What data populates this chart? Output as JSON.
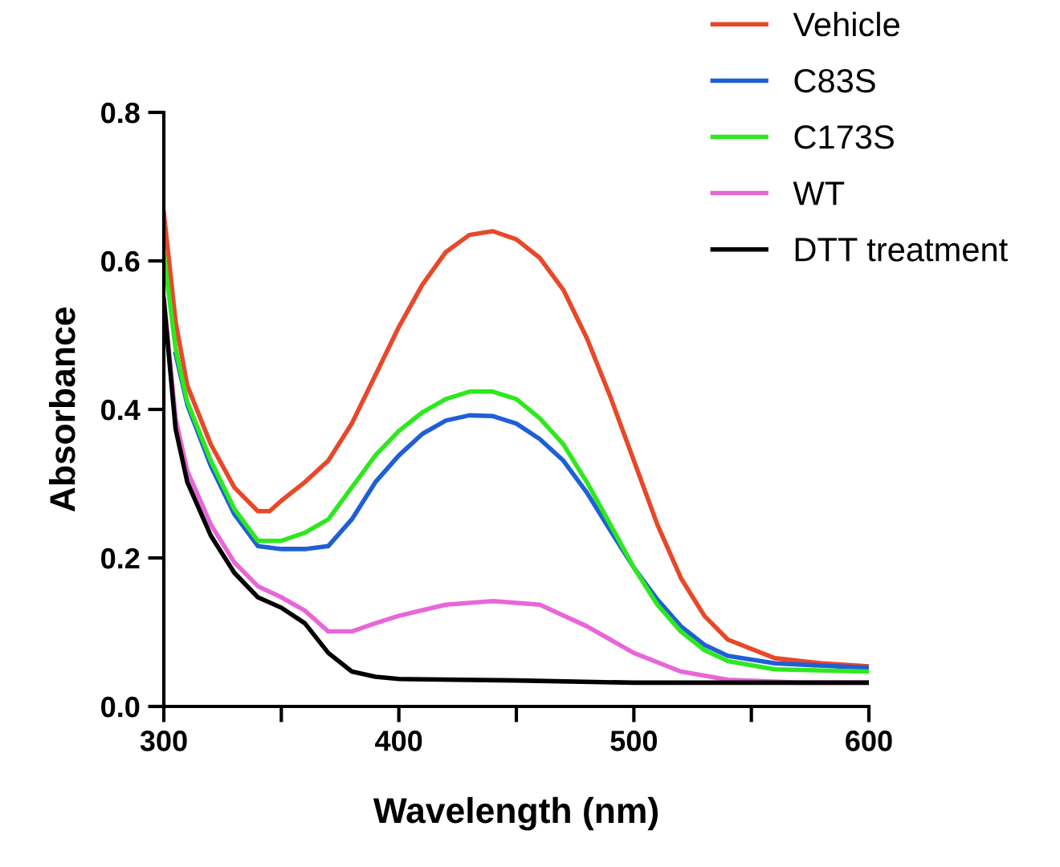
{
  "chart_data": {
    "type": "line",
    "xlabel": "Wavelength (nm)",
    "ylabel": "Absorbance",
    "xlim": [
      300,
      600
    ],
    "ylim": [
      0,
      0.8
    ],
    "xticks": [
      300,
      {
        "value": 350,
        "label": null
      },
      400,
      {
        "value": 450,
        "label": null
      },
      500,
      {
        "value": 550,
        "label": null
      },
      600
    ],
    "yticks": [
      {
        "value": 0,
        "label": "0.0"
      },
      0.2,
      0.4,
      0.6,
      0.8
    ],
    "grid": false,
    "legend": "top right",
    "marker": "none",
    "line_style": "solid",
    "series": [
      {
        "name": "Vehicle",
        "color": "#e8482a",
        "x": [
          300,
          305,
          310,
          320,
          330,
          340,
          345,
          350,
          360,
          370,
          380,
          390,
          400,
          410,
          420,
          430,
          440,
          450,
          460,
          470,
          480,
          490,
          500,
          510,
          520,
          530,
          540,
          560,
          580,
          600
        ],
        "values": [
          0.665,
          0.518,
          0.432,
          0.353,
          0.295,
          0.263,
          0.263,
          0.277,
          0.302,
          0.331,
          0.381,
          0.446,
          0.511,
          0.568,
          0.612,
          0.635,
          0.64,
          0.629,
          0.604,
          0.561,
          0.496,
          0.417,
          0.331,
          0.245,
          0.173,
          0.122,
          0.09,
          0.065,
          0.058,
          0.054
        ]
      },
      {
        "name": "C83S",
        "color": "#1f5fd6",
        "x": [
          305,
          310,
          320,
          330,
          340,
          350,
          360,
          370,
          380,
          390,
          400,
          410,
          420,
          430,
          440,
          450,
          460,
          470,
          480,
          490,
          500,
          510,
          520,
          530,
          540,
          560,
          600
        ],
        "values": [
          0.475,
          0.406,
          0.324,
          0.259,
          0.216,
          0.212,
          0.212,
          0.216,
          0.252,
          0.302,
          0.338,
          0.367,
          0.385,
          0.392,
          0.391,
          0.381,
          0.36,
          0.331,
          0.288,
          0.237,
          0.187,
          0.144,
          0.108,
          0.083,
          0.068,
          0.058,
          0.052
        ]
      },
      {
        "name": "C173S",
        "color": "#2ee81f",
        "x": [
          300,
          305,
          310,
          320,
          330,
          340,
          350,
          360,
          370,
          380,
          390,
          400,
          410,
          420,
          430,
          440,
          450,
          460,
          470,
          480,
          490,
          500,
          510,
          520,
          530,
          540,
          560,
          600
        ],
        "values": [
          0.61,
          0.482,
          0.41,
          0.331,
          0.266,
          0.223,
          0.223,
          0.234,
          0.252,
          0.295,
          0.338,
          0.371,
          0.396,
          0.414,
          0.424,
          0.424,
          0.414,
          0.388,
          0.353,
          0.302,
          0.245,
          0.187,
          0.137,
          0.101,
          0.076,
          0.061,
          0.05,
          0.047
        ]
      },
      {
        "name": "WT",
        "color": "#e866d8",
        "x": [
          300,
          305,
          310,
          320,
          330,
          340,
          350,
          360,
          370,
          380,
          390,
          400,
          420,
          440,
          460,
          480,
          500,
          520,
          540,
          570,
          600
        ],
        "values": [
          0.55,
          0.388,
          0.317,
          0.245,
          0.194,
          0.162,
          0.147,
          0.129,
          0.101,
          0.101,
          0.112,
          0.122,
          0.137,
          0.142,
          0.137,
          0.108,
          0.072,
          0.047,
          0.036,
          0.032,
          0.032
        ]
      },
      {
        "name": "DTT treatment",
        "color": "#000000",
        "x": [
          300,
          305,
          310,
          320,
          330,
          340,
          350,
          360,
          370,
          380,
          390,
          400,
          450,
          500,
          600
        ],
        "values": [
          0.547,
          0.374,
          0.302,
          0.23,
          0.18,
          0.147,
          0.133,
          0.112,
          0.072,
          0.047,
          0.04,
          0.037,
          0.035,
          0.032,
          0.032
        ]
      }
    ]
  }
}
